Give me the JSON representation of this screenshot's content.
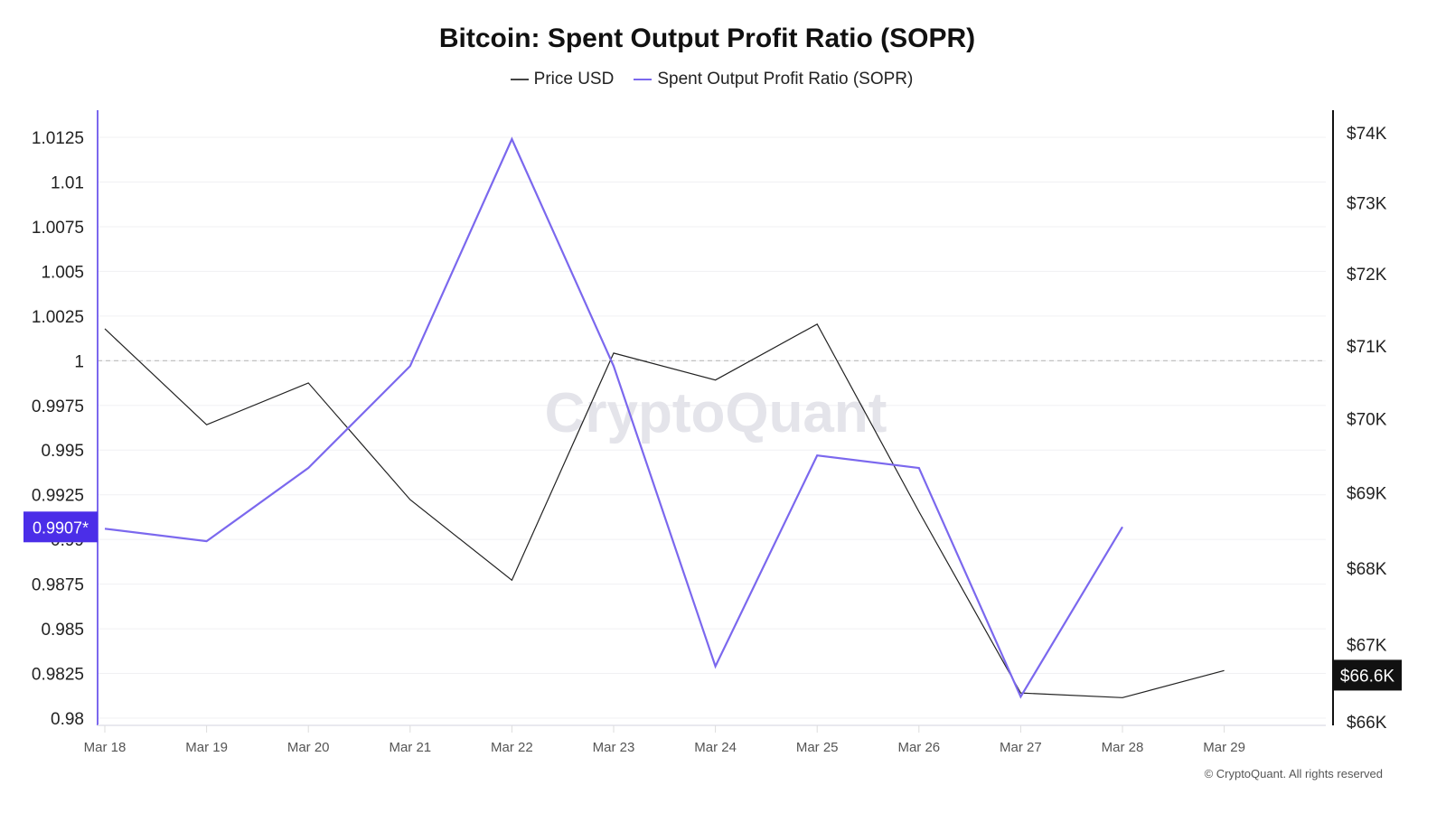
{
  "chart_data": {
    "type": "line",
    "title": "Bitcoin: Spent Output Profit Ratio (SOPR)",
    "categories": [
      "Mar 18",
      "Mar 19",
      "Mar 20",
      "Mar 21",
      "Mar 22",
      "Mar 23",
      "Mar 24",
      "Mar 25",
      "Mar 26",
      "Mar 27",
      "Mar 28",
      "Mar 29"
    ],
    "series": [
      {
        "name": "Price USD",
        "axis": "right",
        "color": "#222222",
        "values": [
          71235,
          69920,
          70490,
          68910,
          67840,
          70900,
          70530,
          71300,
          68750,
          66370,
          66310,
          66660
        ]
      },
      {
        "name": "Spent Output Profit Ratio (SOPR)",
        "axis": "left",
        "color": "#7b68ee",
        "values": [
          0.9906,
          0.9899,
          0.994,
          0.9997,
          1.0124,
          0.9997,
          0.9829,
          0.9947,
          0.994,
          0.9812,
          0.9907,
          null
        ]
      }
    ],
    "left_axis": {
      "ticks": [
        "0.98",
        "0.9825",
        "0.985",
        "0.9875",
        "0.99",
        "0.9925",
        "0.995",
        "0.9975",
        "1",
        "1.0025",
        "1.005",
        "1.0075",
        "1.01",
        "1.0125"
      ],
      "range": [
        0.98,
        1.0125
      ],
      "color": "#7b68ee"
    },
    "right_axis": {
      "ticks": [
        "$66K",
        "$67K",
        "$68K",
        "$69K",
        "$70K",
        "$71K",
        "$72K",
        "$73K",
        "$74K"
      ],
      "tick_values": [
        66000,
        67000,
        68000,
        69000,
        70000,
        71000,
        72000,
        73000,
        74000
      ],
      "range": [
        66000,
        74000
      ],
      "scale": "log"
    },
    "reference_line": 1,
    "left_marker": {
      "label": "0.9907*",
      "value": 0.9907,
      "color": "#4b2ee8"
    },
    "right_marker": {
      "label": "$66.6K",
      "value": 66600,
      "color": "#111111"
    },
    "grid": true,
    "legend_position": "top-center",
    "watermark": "CryptoQuant"
  },
  "copyright": "© CryptoQuant. All rights reserved"
}
